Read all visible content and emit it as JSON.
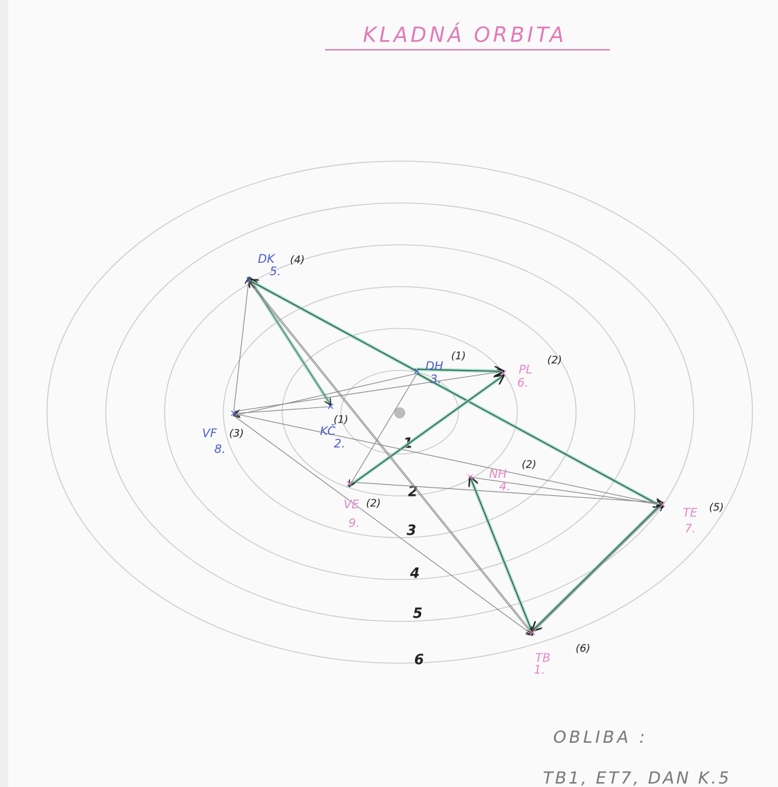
{
  "header": {
    "title": "KLADNÁ ORBITA"
  },
  "rings": [
    "1",
    "2",
    "3",
    "4",
    "5",
    "6"
  ],
  "nodes": [
    {
      "name": "DK",
      "rank": "5.",
      "score": "(4)"
    },
    {
      "name": "DH",
      "rank": "3.",
      "score": "(1)"
    },
    {
      "name": "PL",
      "rank": "6.",
      "score": "(2)"
    },
    {
      "name": "VF",
      "rank": "8.",
      "score": "(3)"
    },
    {
      "name": "KČ",
      "rank": "2.",
      "score": "(1)"
    },
    {
      "name": "VE",
      "rank": "9.",
      "score": "(2)"
    },
    {
      "name": "NH",
      "rank": "4.",
      "score": "(2)"
    },
    {
      "name": "TE",
      "rank": "7.",
      "score": "(5)"
    },
    {
      "name": "TB",
      "rank": "1.",
      "score": "(6)"
    }
  ],
  "footer": {
    "heading": "OBLIBA :",
    "text": "TB1, ET7, DAN K.5"
  }
}
